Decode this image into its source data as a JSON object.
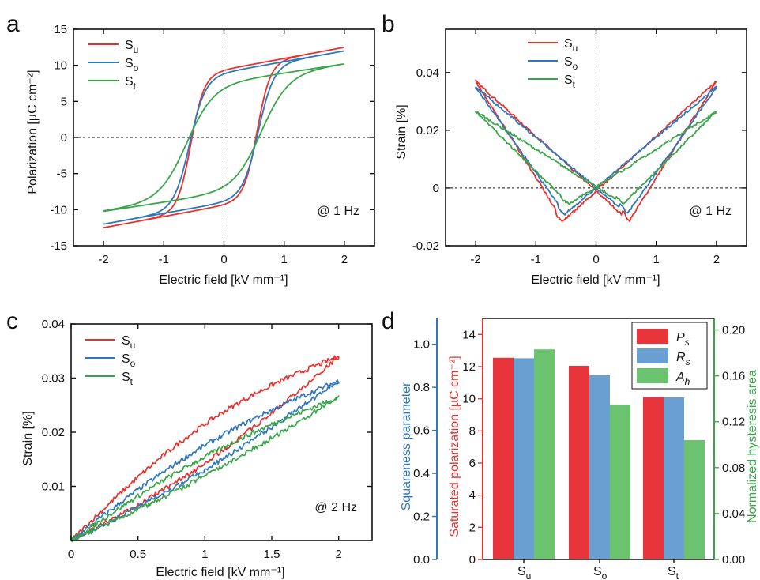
{
  "chart_data": [
    {
      "panel": "a",
      "type": "line",
      "xlabel": "Electric field [kV mm⁻¹]",
      "ylabel": "Polarization [µC cm⁻²]",
      "xlim": [
        -2.5,
        2.5
      ],
      "ylim": [
        -15,
        15
      ],
      "xticks": [
        "-2",
        "-1",
        "0",
        "1",
        "2"
      ],
      "yticks": [
        "-15",
        "-10",
        "-5",
        "0",
        "5",
        "10",
        "15"
      ],
      "annotation": "@ 1 Hz",
      "legend_position": "top-left",
      "series": [
        {
          "name": "Su",
          "color": "#e8322e",
          "loop": {
            "Pmax": 12.5,
            "Pr": 8.7,
            "Ec": 0.55,
            "width": 0.22
          }
        },
        {
          "name": "So",
          "color": "#2e78c0",
          "loop": {
            "Pmax": 12.0,
            "Pr": 8.2,
            "Ec": 0.57,
            "width": 0.26
          }
        },
        {
          "name": "St",
          "color": "#3aa64a",
          "loop": {
            "Pmax": 10.2,
            "Pr": 6.3,
            "Ec": 0.62,
            "width": 0.45
          }
        }
      ]
    },
    {
      "panel": "b",
      "type": "line",
      "xlabel": "Electric field [kV mm⁻¹]",
      "ylabel": "Strain [%]",
      "xlim": [
        -2.5,
        2.5
      ],
      "ylim": [
        -0.02,
        0.055
      ],
      "xticks": [
        "-2",
        "-1",
        "0",
        "1",
        "2"
      ],
      "yticks": [
        "-0.02",
        "0",
        "0.02",
        "0.04"
      ],
      "annotation": "@ 1 Hz",
      "legend_position": "top-center",
      "series": [
        {
          "name": "Su",
          "color": "#e8322e",
          "butterfly": {
            "Smax": 0.037,
            "Smin": -0.0115,
            "Ec": 0.55
          }
        },
        {
          "name": "So",
          "color": "#2e78c0",
          "butterfly": {
            "Smax": 0.035,
            "Smin": -0.009,
            "Ec": 0.52
          }
        },
        {
          "name": "St",
          "color": "#3aa64a",
          "butterfly": {
            "Smax": 0.0265,
            "Smin": -0.0055,
            "Ec": 0.45
          }
        }
      ]
    },
    {
      "panel": "c",
      "type": "line",
      "xlabel": "Electric field [kV mm⁻¹]",
      "ylabel": "Strain [%]",
      "xlim": [
        0,
        2.25
      ],
      "ylim": [
        0,
        0.04
      ],
      "xticks": [
        "0",
        "0.5",
        "1",
        "1.5",
        "2"
      ],
      "yticks": [
        "0.01",
        "0.02",
        "0.03",
        "0.04"
      ],
      "annotation": "@ 2 Hz",
      "legend_position": "top-left",
      "series": [
        {
          "name": "Su",
          "color": "#e8322e",
          "unipolar": {
            "Smax": 0.034,
            "spread": 0.0045
          }
        },
        {
          "name": "So",
          "color": "#2e78c0",
          "unipolar": {
            "Smax": 0.0295,
            "spread": 0.0028
          }
        },
        {
          "name": "St",
          "color": "#3aa64a",
          "unipolar": {
            "Smax": 0.0265,
            "spread": 0.0022
          }
        }
      ]
    },
    {
      "panel": "d",
      "type": "bar",
      "categories": [
        "Su",
        "So",
        "St"
      ],
      "y_left_outer_label": "Squareness parameter",
      "y_left_outer_lim": [
        0,
        1.12
      ],
      "y_left_outer_ticks": [
        "0.0",
        "0.2",
        "0.4",
        "0.6",
        "0.8",
        "1.0"
      ],
      "y_left_inner_label": "Saturated polarization [µC cm⁻²]",
      "y_left_inner_lim": [
        0,
        15
      ],
      "y_left_inner_ticks": [
        "0",
        "2",
        "4",
        "6",
        "8",
        "10",
        "12",
        "14"
      ],
      "y_right_label": "Normalized hysteresis area",
      "y_right_lim": [
        0,
        0.21
      ],
      "y_right_ticks": [
        "0.00",
        "0.04",
        "0.08",
        "0.12",
        "0.16",
        "0.20"
      ],
      "legend_position": "top-right",
      "series": [
        {
          "name": "Ps",
          "color": "#e8353b",
          "axis": "inner-left",
          "values": [
            12.55,
            12.05,
            10.1
          ]
        },
        {
          "name": "Rs",
          "color": "#6a9fd1",
          "axis": "outer-left",
          "values": [
            0.935,
            0.856,
            0.753
          ]
        },
        {
          "name": "Ah",
          "color": "#6cc36f",
          "axis": "right",
          "values": [
            0.183,
            0.135,
            0.104
          ]
        }
      ],
      "axis_colors": {
        "outer_left": "#2e78c0",
        "inner_left": "#e8322e",
        "right": "#3aa64a"
      }
    }
  ],
  "panels": {
    "a": "a",
    "b": "b",
    "c": "c",
    "d": "d"
  },
  "labels": {
    "a_x": "Electric field [kV mm⁻¹]",
    "a_y": "Polarization [µC cm⁻²]",
    "b_x": "Electric field [kV mm⁻¹]",
    "b_y": "Strain [%]",
    "c_x": "Electric field [kV mm⁻¹]",
    "c_y": "Strain [%]",
    "d_outer": "Squareness parameter",
    "d_inner": "Saturated polarization [µC cm⁻²]",
    "d_right": "Normalized hysteresis area"
  }
}
